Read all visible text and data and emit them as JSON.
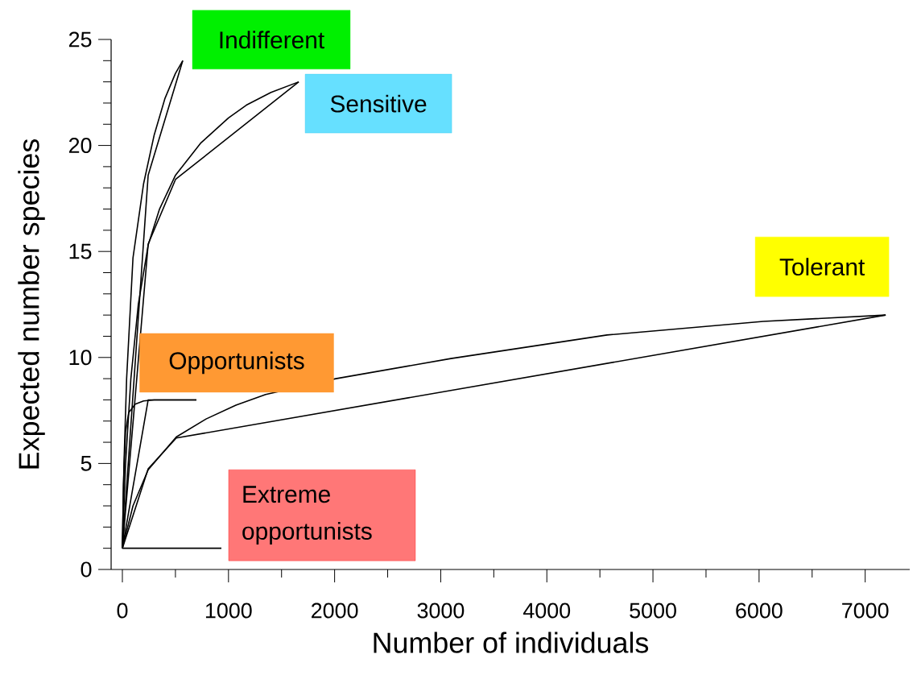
{
  "chart_data": {
    "type": "line",
    "xlabel": "Number of individuals",
    "ylabel": "Expected number species",
    "xlim": [
      -106,
      7420
    ],
    "ylim": [
      0,
      25
    ],
    "xticks": [
      0,
      1000,
      2000,
      3000,
      4000,
      5000,
      6000,
      7000
    ],
    "yticks": [
      0,
      5,
      10,
      15,
      20,
      25
    ],
    "marker": "none",
    "line_style": "solid",
    "series": [
      {
        "color": "#000000",
        "x": [
          0,
          15,
          40,
          100,
          200,
          300,
          400,
          500,
          569
        ],
        "values": [
          1,
          5,
          9,
          14.7,
          18.2,
          20.5,
          22.2,
          23.4,
          24
        ]
      },
      {
        "color": "#000000",
        "x": [
          0,
          243,
          569
        ],
        "values": [
          1,
          18.6,
          24
        ]
      },
      {
        "color": "#000000",
        "x": [
          0,
          30,
          80,
          150,
          243,
          350,
          501,
          736,
          1000,
          1168,
          1400,
          1662
        ],
        "values": [
          1,
          5,
          9,
          12.5,
          15.3,
          17,
          18.6,
          20.1,
          21.3,
          21.9,
          22.5,
          23
        ]
      },
      {
        "color": "#000000",
        "x": [
          0,
          243,
          501,
          1662
        ],
        "values": [
          1,
          15.35,
          18.4,
          23
        ]
      },
      {
        "color": "#000000",
        "x": [
          0,
          10,
          30,
          60,
          121,
          200,
          300,
          698
        ],
        "values": [
          1,
          4,
          6.5,
          7.4,
          7.8,
          7.95,
          8,
          8
        ]
      },
      {
        "color": "#000000",
        "x": [
          0,
          243,
          698
        ],
        "values": [
          1,
          8,
          8
        ]
      },
      {
        "color": "#000000",
        "x": [
          0,
          100,
          243,
          508,
          789,
          1070,
          1350,
          2011,
          3096,
          4567,
          6040,
          7193
        ],
        "values": [
          1,
          3,
          4.7,
          6.25,
          7.1,
          7.75,
          8.25,
          9,
          9.95,
          11.06,
          11.7,
          12
        ]
      },
      {
        "color": "#000000",
        "x": [
          0,
          243,
          508,
          7193
        ],
        "values": [
          1,
          4.75,
          6.2,
          12
        ]
      },
      {
        "color": "#000000",
        "x": [
          0,
          933
        ],
        "values": [
          1,
          1
        ]
      }
    ],
    "annotations": [
      {
        "text": "Indifferent",
        "x": 569,
        "y": 24
      },
      {
        "text": "Sensitive",
        "x": 1662,
        "y": 23
      },
      {
        "text": "Tolerant",
        "x": 7193,
        "y": 12
      },
      {
        "text": "Opportunists",
        "x": 698,
        "y": 8
      },
      {
        "text": "Extreme opportunists",
        "x": 933,
        "y": 1
      }
    ]
  }
}
